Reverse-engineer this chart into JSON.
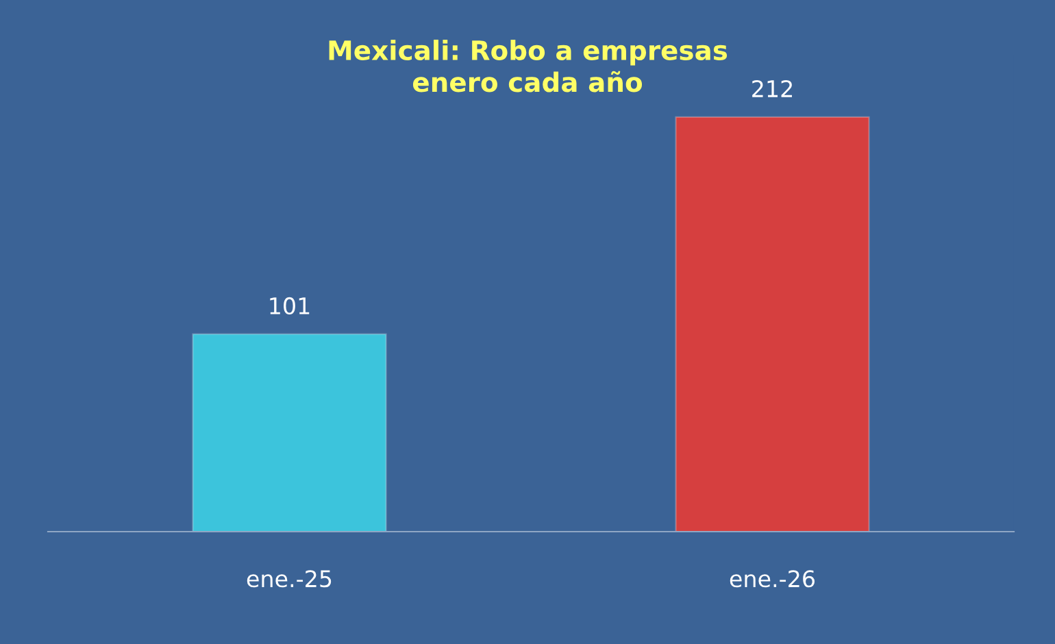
{
  "chart_data": {
    "type": "bar",
    "title": "Mexicali: Robo a empresas\nenero cada año",
    "categories": [
      "ene.-25",
      "ene.-26"
    ],
    "values": [
      101,
      212
    ],
    "colors": [
      "#3cc4dc",
      "#d63f3f"
    ],
    "data_labels": true,
    "grid": false,
    "legend": false
  }
}
